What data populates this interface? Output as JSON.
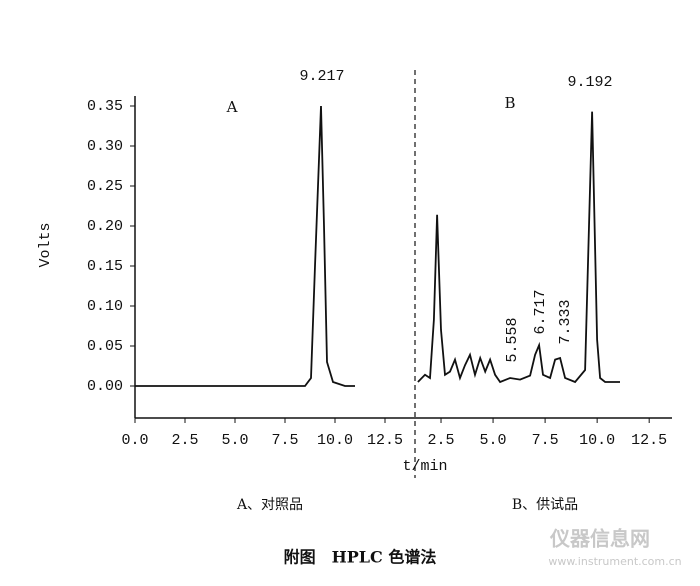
{
  "chart_data": [
    {
      "type": "line",
      "panel_label": "A",
      "caption": "A、对照品",
      "ylabel": "Volts",
      "annotations": [
        "9.217"
      ],
      "x": [
        0,
        8.5,
        8.8,
        9.0,
        9.3,
        9.45,
        9.6,
        9.9,
        10.5,
        11
      ],
      "values": [
        0,
        0,
        0.01,
        0.15,
        0.35,
        0.2,
        0.03,
        0.005,
        0,
        0
      ],
      "color": "#111111",
      "xlim": [
        0,
        14
      ],
      "ylim": [
        -0.04,
        0.36
      ],
      "xticks": [
        {
          "value": 0,
          "label": "0.0"
        },
        {
          "value": 2.5,
          "label": "2.5"
        },
        {
          "value": 5,
          "label": "5.0"
        },
        {
          "value": 7.5,
          "label": "7.5"
        },
        {
          "value": 10,
          "label": "10.0"
        },
        {
          "value": 12.5,
          "label": "12.5"
        }
      ],
      "yticks": [
        {
          "value": 0,
          "label": "0.00"
        },
        {
          "value": 0.05,
          "label": "0.05"
        },
        {
          "value": 0.1,
          "label": "0.10"
        },
        {
          "value": 0.15,
          "label": "0.15"
        },
        {
          "value": 0.2,
          "label": "0.20"
        },
        {
          "value": 0.25,
          "label": "0.25"
        },
        {
          "value": 0.3,
          "label": "0.30"
        },
        {
          "value": 0.35,
          "label": "0.35"
        }
      ]
    },
    {
      "type": "line",
      "panel_label": "B",
      "caption": "B、供试品",
      "annotations": [
        "9.192",
        "5.558",
        "6.717",
        "7.333"
      ],
      "x": [
        1.39,
        1.73,
        1.97,
        2.16,
        2.31,
        2.5,
        2.69,
        2.93,
        3.17,
        3.41,
        3.65,
        3.89,
        4.13,
        4.38,
        4.62,
        4.86,
        5.1,
        5.34,
        5.82,
        6.3,
        6.78,
        7.02,
        7.21,
        7.4,
        7.74,
        7.98,
        8.22,
        8.46,
        8.94,
        9.42,
        9.76,
        10.0,
        10.14,
        10.38,
        11.1
      ],
      "values": [
        0.005,
        0.014,
        0.01,
        0.083,
        0.214,
        0.07,
        0.014,
        0.018,
        0.033,
        0.01,
        0.026,
        0.039,
        0.014,
        0.035,
        0.018,
        0.033,
        0.014,
        0.005,
        0.01,
        0.008,
        0.013,
        0.039,
        0.051,
        0.014,
        0.01,
        0.033,
        0.035,
        0.01,
        0.005,
        0.02,
        0.343,
        0.058,
        0.01,
        0.005,
        0.005
      ],
      "color": "#111111",
      "xlim": [
        1.25,
        13.5
      ],
      "ylim": [
        -0.04,
        0.36
      ],
      "xticks": [
        {
          "value": 2.5,
          "label": "2.5"
        },
        {
          "value": 5,
          "label": "5.0"
        },
        {
          "value": 7.5,
          "label": "7.5"
        },
        {
          "value": 10,
          "label": "10.0"
        },
        {
          "value": 12.5,
          "label": "12.5"
        }
      ]
    }
  ],
  "xlabel": "t/min",
  "figure_title": "附图　HPLC 色谱法",
  "watermark": [
    "仪器信息网",
    "www.instrument.com.cn"
  ]
}
